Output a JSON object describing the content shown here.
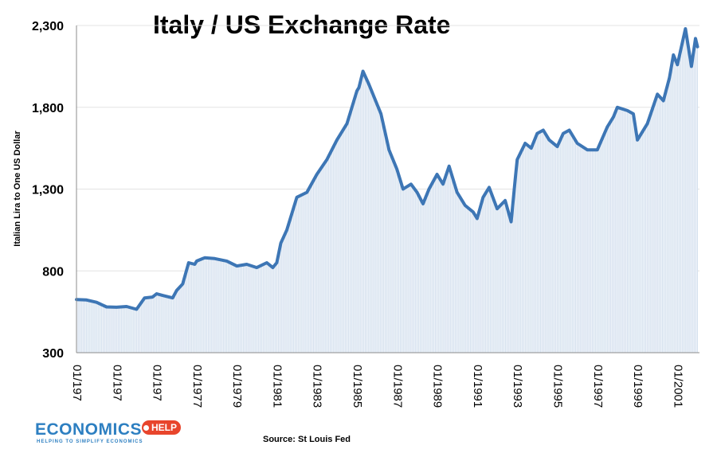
{
  "chart_data": {
    "type": "area",
    "title": "Italy / US Exchange Rate",
    "ylabel": "Italian Lira to One US Dollar",
    "xlabel": "",
    "ylim": [
      300,
      2300
    ],
    "yticks": [
      "300",
      "800",
      "1,300",
      "1,800",
      "2,300"
    ],
    "xticks": [
      "01/197",
      "01/197",
      "01/197",
      "01/1977",
      "01/1979",
      "01/1981",
      "01/1983",
      "01/1985",
      "01/1987",
      "01/1989",
      "01/1991",
      "01/1993",
      "01/1995",
      "01/1997",
      "01/1999",
      "01/2001"
    ],
    "xlim": [
      1971,
      2002.1
    ],
    "grid": true,
    "line_color": "#3d76b5",
    "fill_color": "#d4e0ee",
    "series": [
      {
        "x": [
          1971.0,
          1971.5,
          1972.0,
          1972.5,
          1973.0,
          1973.5,
          1974.0,
          1974.4,
          1974.8,
          1975.0,
          1975.3,
          1975.8,
          1976.0,
          1976.3,
          1976.6,
          1976.9,
          1977.0,
          1977.4,
          1977.9,
          1978.5,
          1979.0,
          1979.5,
          1980.0,
          1980.5,
          1980.8,
          1981.0,
          1981.2,
          1981.5,
          1982.0,
          1982.5,
          1983.0,
          1983.5,
          1984.0,
          1984.5,
          1985.0,
          1985.1,
          1985.3,
          1985.6,
          1985.8,
          1986.2,
          1986.6,
          1987.0,
          1987.3,
          1987.7,
          1988.0,
          1988.3,
          1988.6,
          1989.0,
          1989.3,
          1989.6,
          1990.0,
          1990.4,
          1990.8,
          1991.0,
          1991.3,
          1991.6,
          1992.0,
          1992.4,
          1992.7,
          1992.9,
          1993.0,
          1993.4,
          1993.7,
          1994.0,
          1994.3,
          1994.6,
          1995.0,
          1995.3,
          1995.6,
          1996.0,
          1996.5,
          1997.0,
          1997.5,
          1997.8,
          1998.0,
          1998.5,
          1998.8,
          1999.0,
          1999.5,
          2000.0,
          2000.3,
          2000.6,
          2000.8,
          2001.0,
          2001.4,
          2001.7,
          2001.9,
          2002.0
        ],
        "y": [
          625,
          622,
          608,
          580,
          578,
          582,
          565,
          635,
          640,
          660,
          650,
          635,
          680,
          720,
          850,
          840,
          860,
          880,
          875,
          860,
          830,
          840,
          820,
          850,
          820,
          850,
          970,
          1050,
          1250,
          1280,
          1390,
          1480,
          1600,
          1700,
          1900,
          1920,
          2020,
          1940,
          1880,
          1760,
          1540,
          1420,
          1300,
          1330,
          1280,
          1210,
          1300,
          1390,
          1330,
          1440,
          1280,
          1200,
          1160,
          1120,
          1250,
          1310,
          1180,
          1230,
          1100,
          1360,
          1480,
          1580,
          1550,
          1640,
          1660,
          1600,
          1560,
          1640,
          1660,
          1580,
          1540,
          1540,
          1680,
          1740,
          1800,
          1780,
          1760,
          1600,
          1700,
          1880,
          1840,
          1980,
          2120,
          2060,
          2280,
          2050,
          2220,
          2170
        ]
      }
    ]
  },
  "footer": {
    "source": "Source: St Louis Fed",
    "logo_text": "ECONOMICS",
    "logo_badge": "HELP",
    "logo_tagline": "HELPING TO SIMPLIFY ECONOMICS"
  }
}
